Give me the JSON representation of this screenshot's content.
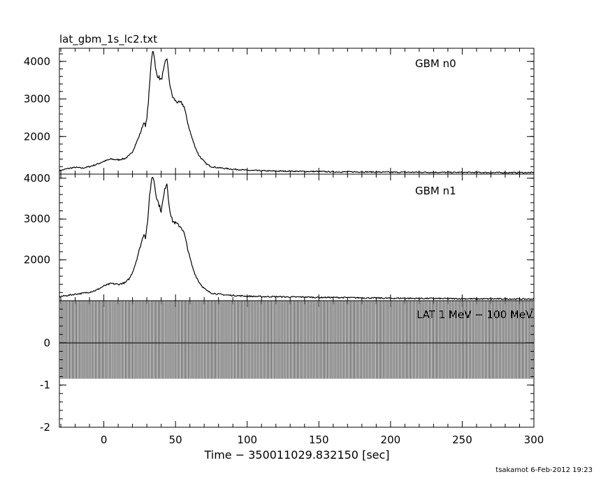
{
  "file_title": "lat_gbm_1s_lc2.txt",
  "footer": "tsakamot 6-Feb-2012 19:23",
  "chart_data": {
    "type": "line",
    "xlabel": "Time − 350011029.832150 [sec]",
    "xlim": [
      -31,
      300
    ],
    "xticks": [
      0,
      50,
      100,
      150,
      200,
      250,
      300
    ],
    "panels": [
      {
        "label": "GBM n0",
        "ylim": [
          1000,
          4350
        ],
        "yticks": [
          2000,
          3000,
          4000
        ],
        "series": [
          {
            "x": [
              -31,
              -25,
              -20,
              -15,
              -10,
              -5,
              0,
              5,
              10,
              15,
              18,
              20,
              22,
              24,
              26,
              28,
              29,
              30,
              31,
              32,
              33,
              34,
              35,
              36,
              37,
              38,
              39,
              40,
              41,
              42,
              43,
              44,
              45,
              46,
              47,
              48,
              50,
              52,
              54,
              56,
              58,
              60,
              62,
              64,
              66,
              68,
              70,
              72,
              75,
              80,
              85,
              90,
              95,
              100,
              110,
              120,
              130,
              140,
              150,
              160,
              170,
              180,
              190,
              200,
              210,
              220,
              230,
              240,
              250,
              260,
              270,
              280,
              290,
              300
            ],
            "y": [
              1090,
              1150,
              1180,
              1160,
              1200,
              1260,
              1340,
              1400,
              1380,
              1420,
              1500,
              1600,
              1780,
              1950,
              2150,
              2400,
              2250,
              2500,
              2900,
              3400,
              4000,
              4300,
              4200,
              3800,
              3650,
              3600,
              3550,
              3500,
              3650,
              3800,
              4000,
              4100,
              3700,
              3400,
              3200,
              3050,
              2950,
              2900,
              2900,
              2800,
              2450,
              2150,
              1900,
              1700,
              1520,
              1420,
              1330,
              1260,
              1200,
              1170,
              1150,
              1130,
              1120,
              1100,
              1090,
              1080,
              1080,
              1070,
              1070,
              1060,
              1060,
              1060,
              1055,
              1050,
              1050,
              1050,
              1050,
              1045,
              1045,
              1045,
              1040,
              1040,
              1040,
              1040
            ]
          }
        ]
      },
      {
        "label": "GBM n1",
        "ylim": [
          1000,
          4100
        ],
        "yticks": [
          2000,
          3000,
          4000
        ],
        "series": [
          {
            "x": [
              -31,
              -25,
              -20,
              -15,
              -10,
              -5,
              0,
              5,
              10,
              15,
              18,
              20,
              22,
              24,
              26,
              28,
              29,
              30,
              31,
              32,
              33,
              34,
              35,
              36,
              37,
              38,
              39,
              40,
              41,
              42,
              43,
              44,
              45,
              46,
              47,
              48,
              50,
              52,
              54,
              56,
              58,
              60,
              62,
              64,
              66,
              68,
              70,
              72,
              75,
              80,
              85,
              90,
              95,
              100,
              110,
              120,
              130,
              140,
              150,
              160,
              170,
              180,
              190,
              200,
              210,
              220,
              230,
              240,
              250,
              260,
              270,
              280,
              290,
              300
            ],
            "y": [
              1100,
              1130,
              1160,
              1180,
              1210,
              1260,
              1360,
              1420,
              1400,
              1440,
              1550,
              1700,
              1900,
              2150,
              2400,
              2650,
              2550,
              2800,
              3100,
              3600,
              3900,
              4050,
              3950,
              3700,
              3500,
              3400,
              3300,
              3200,
              3400,
              3600,
              3800,
              3900,
              3500,
              3250,
              3050,
              2950,
              2900,
              2850,
              2800,
              2650,
              2350,
              2050,
              1800,
              1620,
              1480,
              1380,
              1300,
              1240,
              1190,
              1160,
              1140,
              1130,
              1120,
              1110,
              1100,
              1100,
              1090,
              1090,
              1080,
              1080,
              1075,
              1070,
              1065,
              1060,
              1060,
              1055,
              1055,
              1050,
              1050,
              1045,
              1045,
              1045,
              1040,
              1040
            ]
          }
        ]
      },
      {
        "label": "LAT 1 MeV − 100 MeV",
        "ylim": [
          -2,
          1
        ],
        "yticks": [
          -2,
          -1,
          0
        ],
        "series": [
          {
            "x_start": -31,
            "x_end": 300,
            "x_step": 1,
            "y_high": 1,
            "y_low": -0.85,
            "baseline": 0
          }
        ]
      }
    ]
  }
}
